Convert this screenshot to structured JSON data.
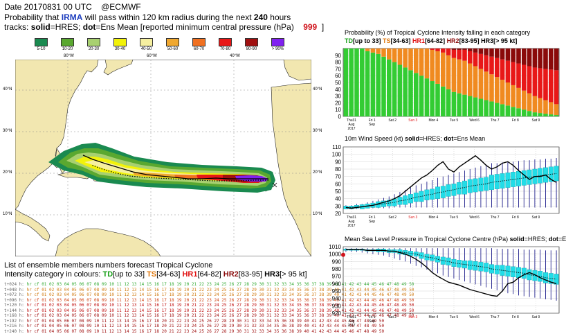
{
  "header": {
    "line1_date": "Date 20170831 00 UTC",
    "line1_org": "@ECMWF",
    "line2_a": "Probability that",
    "storm": "IRMA",
    "line2_b": "will pass within 120 km radius during the next",
    "hours": "240",
    "line2_c": "hours",
    "line3_a": "tracks:",
    "solid": "solid",
    "line3_b": "=HRES;",
    "dot": "dot",
    "line3_c": "=Ens Mean [reported minimum central pressure (hPa)",
    "pressure": "999",
    "line3_d": "]"
  },
  "legend": [
    {
      "label": "5-10",
      "color": "#1a8a50"
    },
    {
      "label": "10-20",
      "color": "#5aa830"
    },
    {
      "label": "20-30",
      "color": "#a8d070"
    },
    {
      "label": "30-40",
      "color": "#f2f20a"
    },
    {
      "label": "40-50",
      "color": "#f6f0a0"
    },
    {
      "label": "50-60",
      "color": "#f0a830"
    },
    {
      "label": "60-70",
      "color": "#f07020"
    },
    {
      "label": "70-80",
      "color": "#e81818"
    },
    {
      "label": "80-90",
      "color": "#a01010"
    },
    {
      "label": "> 90%",
      "color": "#8020f0"
    }
  ],
  "map": {
    "lon_labels": [
      "80°W",
      "60°W",
      "40°W"
    ],
    "lat_labels": [
      "40°N",
      "30°N",
      "20°N",
      "10°N"
    ],
    "colors": {
      "land": "#f2e7b0",
      "sea": "#ffffff",
      "coast": "#222222",
      "grid": "#888888"
    }
  },
  "ensemble_list": {
    "title": "List of ensemble members numbers forecast Tropical Cyclone",
    "intensity_prefix": "Intensity category in colours:",
    "categories": [
      {
        "name": "TD",
        "range": "[up to 33]",
        "color": "#1aa01a"
      },
      {
        "name": "TS",
        "range": "[34-63]",
        "color": "#e07a10"
      },
      {
        "name": "HR1",
        "range": "[64-82]",
        "color": "#e01010"
      },
      {
        "name": "HR2",
        "range": "[83-95]",
        "color": "#8a0a0a"
      },
      {
        "name": "HR3",
        "range": "[> 95 kt]",
        "color": "#000000"
      }
    ],
    "rows": [
      {
        "label": "t+024 h:",
        "members": "hr cf 01 02 03 04 05 06 07 08 09 10 11 12 13 14 15 16 17 18 19 20 21 22 23 24 25 26 27 28 29 30 31 32 33 34 35 36 37 38 39 40 41 42 43 44 45 46 47 48 49 50",
        "color": "#33aa33"
      },
      {
        "label": "t+048 h:",
        "members": "hr cf 01 02 03 04 05 06 07 08 09 10 11 12 13 14 15 16 17 18 19 20 21 22 23 24 25 26 27 28 29 30 31 32 33 34 35 36 37 38 39 40 41 42 43 44 45 46 47 48 49 50",
        "color": "#d07a10"
      },
      {
        "label": "t+072 h:",
        "members": "hr cf 01 02 03 04 05 06 07 08 09 10 11 12 13 14 15 16 17 18 19 20 21 22 23 24 25 26 27 28 29 30 31 32 33 34 35 36 37 38 39 40 41 42 43 44 45 46 47 48 49 50",
        "color": "#d07a10"
      },
      {
        "label": "t+096 h:",
        "members": "hr cf 01 02 03 04 05 06 07 08 09 10 11 12 13 14 15 16 17 18 19 20 21 22 23 24 25 26 27 28 29 30 31 32 33 34 35 36 37 38 39 40 41 42 43 44 45 46 47 48 49 50",
        "color": "#d04010"
      },
      {
        "label": "t+120 h:",
        "members": "hr cf 01 02 03 04 05 06 07 08 09 10 11 12 13 14 15 16 17 18 19 20 21 22 23 24 25 26 27 28 29 30 31 32 33 34 35 36 37 38 39 40 41 42 43 44 45 46 47 48 49 50",
        "color": "#c01010"
      },
      {
        "label": "t+144 h:",
        "members": "hr cf 01 02 03 04 05 06 07 08 09 10 11 12 13 14 15 16 17 18 19 20 21 22 23 24 25 26 27 28 29 30 31 32 33 34 35 36 37 38 39 40 41 42 43 44 45 46 47 48 49 50",
        "color": "#c01010"
      },
      {
        "label": "t+168 h:",
        "members": "hr cf 01 02 03 04 05 06 07 08 09 10 11 12 13 14 15 16 17 18 19 20 21 22 23 24 25 26 27 28 29 30 31 32 33 34 35 36 37 38 39 40 41 42 43 44 45 46 47 48 49 50",
        "color": "#a01010"
      },
      {
        "label": "t+192 h:",
        "members": "hr cf 01 04 05 06 07 08 09 10 11 12 13 14 15 16 17 18 20 21 22 23 24 25 26 27 28 29 30 31 32 33 34 35 36 38 39 40 41 42 43 44 45 46 47 48 49 50",
        "color": "#a01010"
      },
      {
        "label": "t+216 h:",
        "members": "hr cf 01 04 05 06 07 08 09 10 11 12 13 14 15 16 17 18 20 21 22 23 24 25 26 27 28 29 30 31 32 33 34 35 36 38 39 40 41 42 43 44 45 46 47 48 49 50",
        "color": "#a01010"
      },
      {
        "label": "t+240 h:",
        "members": "hr cf 01 04 05 06 07 08 09 10 11 12 13 14 15 16 17 18 20 21 22 23 24 25 26 27 28 29 30 31 32 33 34 35 36 38 39 40 41 42 43 44 45 46 47 48 49 50",
        "color": "#a01010"
      }
    ]
  },
  "chart_data": [
    {
      "type": "bar",
      "title_a": "Probability (%) of Tropical Cyclone Intensity falling in each category",
      "subtitle": [
        {
          "text": "TD",
          "color": "#1aa01a"
        },
        {
          "text": "[up to 33]",
          "color": "#000"
        },
        {
          "text": "TS",
          "color": "#e07a10"
        },
        {
          "text": "[34-63]",
          "color": "#000"
        },
        {
          "text": "HR1",
          "color": "#e01010"
        },
        {
          "text": "[64-82]",
          "color": "#000"
        },
        {
          "text": "HR2",
          "color": "#8a0a0a"
        },
        {
          "text": "[83-95]",
          "color": "#000"
        },
        {
          "text": "HR3",
          "color": "#000000"
        },
        {
          "text": "[> 95 kt]",
          "color": "#000"
        }
      ],
      "ylim": [
        0,
        100
      ],
      "yticks": [
        0,
        10,
        20,
        30,
        40,
        50,
        60,
        70,
        80,
        90
      ],
      "steps": 40,
      "series": [
        {
          "name": "TD",
          "color": "#33cc33",
          "values": [
            100,
            100,
            100,
            100,
            96,
            94,
            92,
            88,
            84,
            80,
            76,
            72,
            68,
            64,
            60,
            56,
            52,
            48,
            44,
            40,
            36,
            34,
            32,
            30,
            28,
            26,
            24,
            22,
            20,
            18,
            16,
            14,
            12,
            10,
            8,
            6,
            5,
            4,
            3,
            2
          ]
        },
        {
          "name": "TS",
          "color": "#f08a20",
          "values": [
            0,
            0,
            0,
            0,
            4,
            6,
            8,
            12,
            16,
            20,
            24,
            28,
            32,
            36,
            40,
            44,
            46,
            48,
            50,
            50,
            50,
            50,
            50,
            48,
            46,
            44,
            42,
            40,
            38,
            36,
            34,
            32,
            30,
            28,
            26,
            24,
            22,
            20,
            18,
            16
          ]
        },
        {
          "name": "HR1",
          "color": "#e81818",
          "values": [
            0,
            0,
            0,
            0,
            0,
            0,
            0,
            0,
            0,
            0,
            0,
            0,
            0,
            0,
            0,
            0,
            2,
            4,
            6,
            10,
            12,
            14,
            16,
            18,
            20,
            22,
            24,
            26,
            28,
            30,
            32,
            34,
            36,
            38,
            40,
            42,
            44,
            46,
            48,
            50
          ]
        },
        {
          "name": "HR2",
          "color": "#8a0a0a",
          "values": [
            0,
            0,
            0,
            0,
            0,
            0,
            0,
            0,
            0,
            0,
            0,
            0,
            0,
            0,
            0,
            0,
            0,
            0,
            0,
            0,
            2,
            2,
            2,
            4,
            6,
            8,
            10,
            12,
            14,
            16,
            18,
            20,
            22,
            24,
            26,
            28,
            29,
            30,
            31,
            32
          ]
        }
      ],
      "xticks": [
        "Thu31\nAug\n2017",
        "Fri 1\nSep",
        "Sat 2",
        "Sun 3",
        "Mon 4",
        "Tue 5",
        "Wed 6",
        "Thu 7",
        "Fri 8",
        "Sat 9"
      ]
    },
    {
      "type": "line",
      "title_a": "10m Wind Speed (kt)",
      "title_b": "solid",
      "title_c": "=HRES;",
      "title_d": "dot",
      "title_e": "=Ens Mean",
      "ylim": [
        20,
        110
      ],
      "yticks": [
        20,
        30,
        40,
        50,
        60,
        70,
        80,
        90,
        100,
        110
      ],
      "hres": [
        28,
        27,
        28,
        29,
        30,
        31,
        33,
        35,
        37,
        40,
        44,
        50,
        56,
        62,
        68,
        72,
        78,
        85,
        90,
        80,
        76,
        83,
        88,
        93,
        98,
        92,
        85,
        80,
        83,
        88,
        90,
        85,
        78,
        72,
        66,
        70,
        70,
        72,
        66,
        62
      ],
      "ens_mean": [
        28,
        28,
        29,
        29,
        30,
        31,
        32,
        33,
        34,
        35,
        37,
        38,
        40,
        42,
        43,
        45,
        46,
        48,
        49,
        51,
        52,
        54,
        55,
        57,
        58,
        59,
        60,
        62,
        63,
        64,
        65,
        66,
        67,
        68,
        69,
        70,
        71,
        72,
        73,
        74
      ],
      "box_half": [
        2,
        2,
        2,
        3,
        3,
        3,
        4,
        4,
        4,
        5,
        5,
        6,
        6,
        6,
        7,
        7,
        7,
        8,
        8,
        8,
        8,
        8,
        9,
        9,
        9,
        9,
        9,
        10,
        10,
        10,
        10,
        10,
        10,
        10,
        10,
        10,
        10,
        10,
        10,
        10
      ],
      "whisk_lo": [
        26,
        26,
        26,
        26,
        27,
        27,
        27,
        27,
        27,
        28,
        28,
        28,
        28,
        28,
        28,
        28,
        28,
        28,
        28,
        28,
        28,
        28,
        28,
        28,
        28,
        28,
        28,
        28,
        28,
        28,
        28,
        28,
        28,
        28,
        28,
        28,
        28,
        28,
        28,
        28
      ],
      "whisk_hi": [
        31,
        31,
        33,
        33,
        35,
        37,
        39,
        41,
        43,
        46,
        49,
        52,
        55,
        58,
        60,
        63,
        65,
        68,
        70,
        72,
        74,
        76,
        78,
        80,
        82,
        84,
        86,
        88,
        88,
        89,
        90,
        90,
        91,
        92,
        92,
        93,
        93,
        94,
        94,
        95
      ],
      "xticks": [
        "Thu31\nAug\n2017",
        "Fri 1\nSep",
        "Sat 2",
        "Sun 3",
        "Mon 4",
        "Tue 5",
        "Wed 6",
        "Thu 7",
        "Fri 8",
        "Sat 9"
      ]
    },
    {
      "type": "line",
      "title_a": "Mean Sea Level Pressure in Tropical Cyclone Centre (hPa)",
      "title_b": "solid",
      "title_c": "=HRES;",
      "title_d": "dot",
      "title_e": "=Ens Mean",
      "ylim": [
        920,
        1010
      ],
      "yticks": [
        920,
        930,
        940,
        950,
        960,
        970,
        980,
        990,
        1000,
        1010
      ],
      "observed": 999,
      "hres": [
        1006,
        1006,
        1006,
        1006,
        1005,
        1005,
        1005,
        1005,
        1004,
        1004,
        1002,
        1000,
        997,
        993,
        988,
        982,
        975,
        970,
        966,
        962,
        960,
        958,
        955,
        952,
        950,
        948,
        946,
        944,
        943,
        950,
        960,
        962,
        968,
        972,
        975,
        972,
        968,
        965,
        962,
        960
      ],
      "ens_mean": [
        1006,
        1006,
        1006,
        1006,
        1005,
        1005,
        1005,
        1005,
        1004,
        1004,
        1003,
        1002,
        1001,
        1000,
        998,
        996,
        995,
        993,
        991,
        990,
        988,
        987,
        986,
        985,
        984,
        983,
        982,
        980,
        979,
        978,
        977,
        976,
        975,
        974,
        972,
        971,
        970,
        968,
        967,
        966
      ],
      "box_half": [
        1,
        1,
        1,
        1,
        1,
        1,
        2,
        2,
        2,
        2,
        3,
        3,
        3,
        3,
        4,
        4,
        4,
        4,
        5,
        5,
        5,
        5,
        5,
        6,
        6,
        6,
        6,
        6,
        6,
        7,
        7,
        7,
        7,
        7,
        7,
        7,
        7,
        7,
        7,
        7
      ],
      "whisk_lo": [
        1003,
        1003,
        1003,
        1002,
        1001,
        1000,
        999,
        998,
        996,
        994,
        992,
        990,
        987,
        984,
        982,
        979,
        976,
        974,
        971,
        969,
        967,
        965,
        963,
        961,
        959,
        957,
        955,
        953,
        951,
        949,
        947,
        946,
        944,
        943,
        942,
        941,
        940,
        939,
        938,
        937
      ],
      "whisk_hi": [
        1008,
        1008,
        1008,
        1008,
        1008,
        1008,
        1008,
        1008,
        1008,
        1008,
        1008,
        1008,
        1008,
        1008,
        1008,
        1008,
        1008,
        1008,
        1008,
        1008,
        1008,
        1008,
        1008,
        1008,
        1008,
        1008,
        1008,
        1008,
        1007,
        1007,
        1007,
        1007,
        1007,
        1006,
        1006,
        1006,
        1006,
        1005,
        1005,
        1005
      ],
      "xticks": [
        "Thu31\nAug\n2017",
        "Fri 1\nSep",
        "Sat 2",
        "Sun 3",
        "Mon 4",
        "Tue 5",
        "Wed 6",
        "Thu 7",
        "Fri 8",
        "Sat 9"
      ]
    }
  ]
}
